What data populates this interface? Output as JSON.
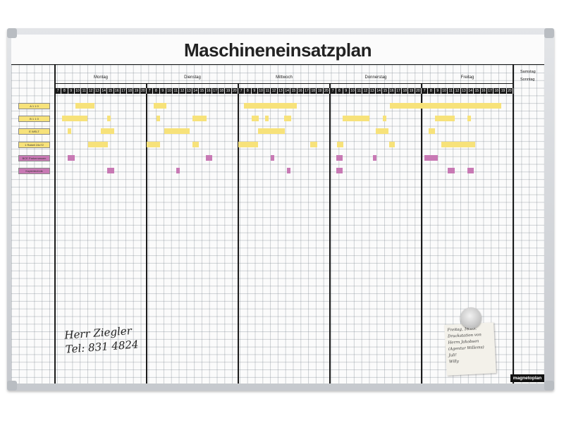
{
  "title": "Maschineneinsatzplan",
  "days": [
    "Montag",
    "Dienstag",
    "Mittwoch",
    "Donnerstag",
    "Freitag"
  ],
  "weekend": [
    "Samstag",
    "Sonntag"
  ],
  "hours": [
    "7",
    "8",
    "9",
    "10",
    "11",
    "12",
    "13",
    "14",
    "15",
    "16",
    "17",
    "18",
    "19",
    "20"
  ],
  "rows": [
    {
      "label": "A 1 1 0",
      "color": "#f7e27a"
    },
    {
      "label": "B 1 1 0",
      "color": "#f7e27a"
    },
    {
      "label": "E WELT",
      "color": "#f7e27a"
    },
    {
      "label": "1 Rabell 24x72",
      "color": "#f7e27a"
    },
    {
      "label": "BCE Parkemessen",
      "color": "#c879b4"
    },
    {
      "label": "Kopiertechnik",
      "color": "#c879b4"
    }
  ],
  "signature": {
    "line1": "Herr Ziegler",
    "line2": "Tel: 831 4824"
  },
  "note": {
    "lines": [
      "Freitag, 16.03.",
      "Druckstation von",
      "Herrn Jakobsen",
      "(Agentur Willems)",
      "Juli!",
      "Willy"
    ]
  },
  "brand": "magnetoplan",
  "colors": {
    "yellow": "#f7e27a",
    "pink": "#c879b4",
    "frame": "#c6c9ce"
  }
}
